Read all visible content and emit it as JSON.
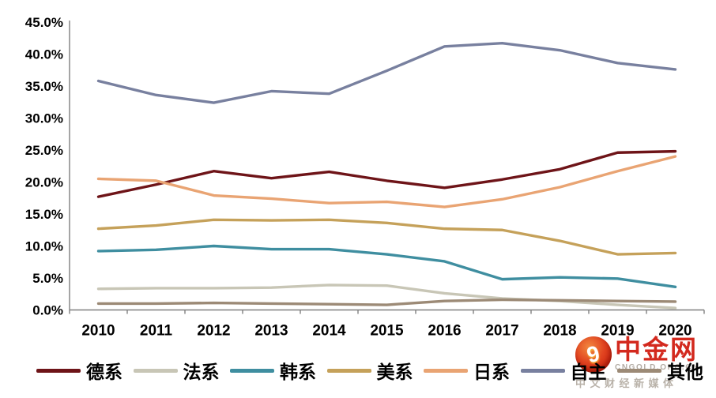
{
  "chart_data": {
    "type": "line",
    "title": "",
    "xlabel": "",
    "ylabel": "",
    "ylim": [
      0,
      45
    ],
    "ytick_step": 5,
    "ytick_labels": [
      "0.0%",
      "5.0%",
      "10.0%",
      "15.0%",
      "20.0%",
      "25.0%",
      "30.0%",
      "35.0%",
      "40.0%",
      "45.0%"
    ],
    "grid": false,
    "legend_position": "bottom",
    "categories": [
      "2010",
      "2011",
      "2012",
      "2013",
      "2014",
      "2015",
      "2016",
      "2017",
      "2018",
      "2019",
      "2020"
    ],
    "series": [
      {
        "name": "德系",
        "color": "#6E1418",
        "values": [
          17.7,
          19.6,
          21.7,
          20.6,
          21.6,
          20.2,
          19.1,
          20.4,
          22.0,
          24.6,
          24.8
        ]
      },
      {
        "name": "法系",
        "color": "#C8C6B6",
        "values": [
          3.3,
          3.4,
          3.4,
          3.5,
          3.9,
          3.8,
          2.6,
          1.8,
          1.4,
          0.8,
          0.3
        ]
      },
      {
        "name": "韩系",
        "color": "#3F8EA0",
        "values": [
          9.2,
          9.4,
          10.0,
          9.5,
          9.5,
          8.7,
          7.6,
          4.8,
          5.1,
          4.9,
          3.6
        ]
      },
      {
        "name": "美系",
        "color": "#C5A15A",
        "values": [
          12.7,
          13.2,
          14.1,
          14.0,
          14.1,
          13.6,
          12.7,
          12.5,
          10.8,
          8.7,
          8.9
        ]
      },
      {
        "name": "日系",
        "color": "#E9A473",
        "values": [
          20.5,
          20.2,
          17.9,
          17.4,
          16.7,
          16.9,
          16.1,
          17.3,
          19.2,
          21.7,
          24.0
        ]
      },
      {
        "name": "自主",
        "color": "#78809F",
        "values": [
          35.8,
          33.6,
          32.4,
          34.2,
          33.8,
          37.4,
          41.2,
          41.7,
          40.6,
          38.6,
          37.6
        ]
      },
      {
        "name": "其他",
        "color": "#9C8A76",
        "values": [
          1.0,
          1.0,
          1.1,
          1.0,
          0.9,
          0.8,
          1.4,
          1.6,
          1.5,
          1.4,
          1.3
        ]
      }
    ]
  },
  "colors": {
    "axis_line": "#7F7F7F",
    "text": "#000000",
    "watermark_red": "#D3291E",
    "watermark_gray": "#B3ACA4"
  },
  "watermark": {
    "brand": "中金网",
    "domain": "CNGOLD.ORG.CN",
    "tagline": "中文财经新媒体",
    "logo_glyph": "9"
  }
}
